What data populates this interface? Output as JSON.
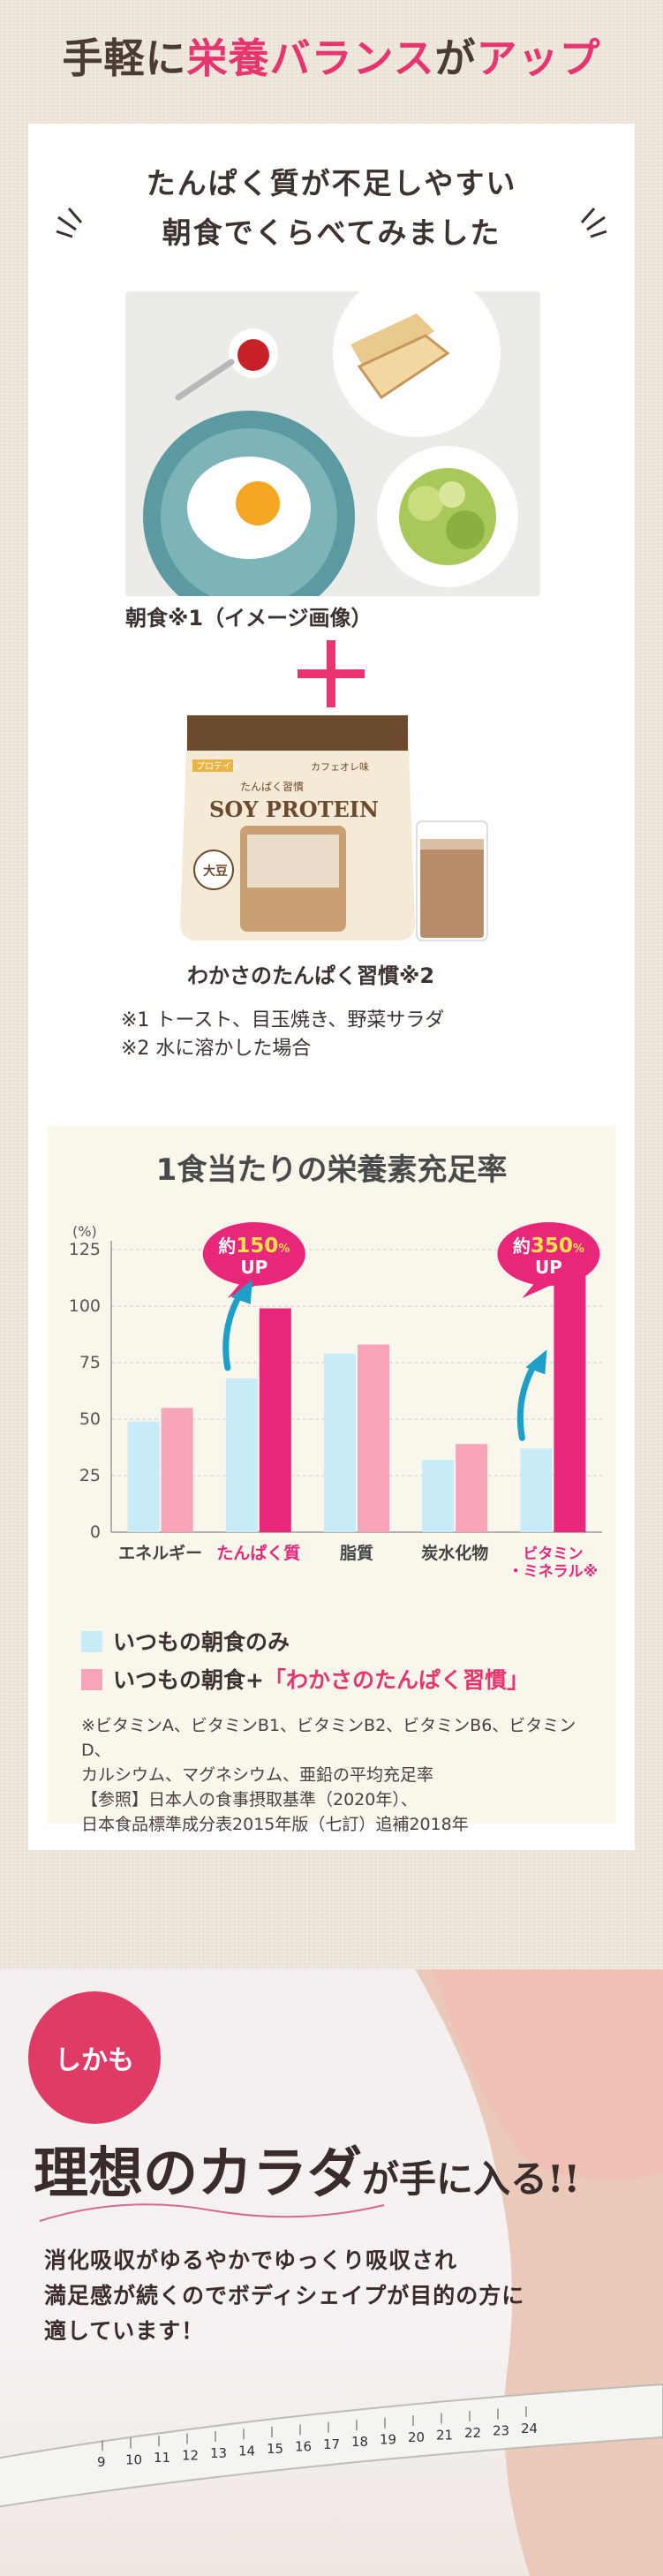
{
  "headline": {
    "pre": "手軽に",
    "emph": "栄養バランス",
    "mid": "が",
    "emph2": "アップ"
  },
  "intro": {
    "line1": "たんぱく質が不足しやすい",
    "line2": "朝食でくらべてみました"
  },
  "breakfast_caption": "朝食※1（イメージ画像）",
  "product": {
    "caption": "わかさのたんぱく習慣※2",
    "pack_brand": "SOY PROTEIN",
    "pack_sub": "たんぱく習慣",
    "pack_flavor": "カフェオレ味",
    "pack_tag": "プロテイン",
    "pack_badge": "大豆"
  },
  "notes": [
    "※1 トースト、目玉焼き、野菜サラダ",
    "※2 水に溶かした場合"
  ],
  "chart_data": {
    "type": "bar",
    "title": "1食当たりの栄養素充足率",
    "ylabel": "(%)",
    "ylim": [
      0,
      125
    ],
    "yticks": [
      "0",
      "25",
      "50",
      "75",
      "100",
      "125"
    ],
    "categories": [
      "エネルギー",
      "たんぱく質",
      "脂質",
      "炭水化物",
      "ビタミン・ミネラル"
    ],
    "category_labels": [
      "エネルギー",
      "たんぱく質",
      "脂質",
      "炭水化物",
      "ビタミン\n・ミネラル※"
    ],
    "highlight_categories": [
      1,
      4
    ],
    "series": [
      {
        "name": "いつもの朝食のみ",
        "color": "#c7ecf8",
        "values": [
          49,
          68,
          79,
          32,
          37
        ]
      },
      {
        "name": "いつもの朝食+「わかさのたんぱく習慣」",
        "color": "#f8a4b8",
        "highlight_color": "#e8277a",
        "values": [
          55,
          99,
          83,
          39,
          131
        ]
      }
    ],
    "callouts": [
      {
        "category": 1,
        "prefix": "約",
        "value": "150",
        "unit": "%",
        "suffix": "UP"
      },
      {
        "category": 4,
        "prefix": "約",
        "value": "350",
        "unit": "%",
        "suffix": "UP"
      }
    ],
    "grid": true
  },
  "legend": {
    "item1": "いつもの朝食のみ",
    "item2_pre": "いつもの朝食+",
    "item2_hl": "「わかさのたんぱく習慣」"
  },
  "footnote": [
    "※ビタミンA、ビタミンB1、ビタミンB2、ビタミンB6、ビタミンD、",
    "カルシウム、マグネシウム、亜鉛の平均充足率",
    "【参照】日本人の食事摂取基準（2020年）、",
    "日本食品標準成分表2015年版（七訂）追補2018年"
  ],
  "bottom": {
    "badge": "しかも",
    "title_a": "理想のカラダ",
    "title_b": "が手に入る!!",
    "body": [
      "消化吸収がゆるやかでゆっくり吸収され",
      "満足感が続くのでボディシェイプが目的の方に",
      "適しています！"
    ],
    "tape_numbers": [
      "9",
      "10",
      "11",
      "12",
      "13",
      "14",
      "15",
      "16",
      "17",
      "18",
      "19",
      "20",
      "21",
      "22",
      "23",
      "24"
    ]
  },
  "colors": {
    "accent": "#e8356f",
    "text": "#3c3330"
  }
}
